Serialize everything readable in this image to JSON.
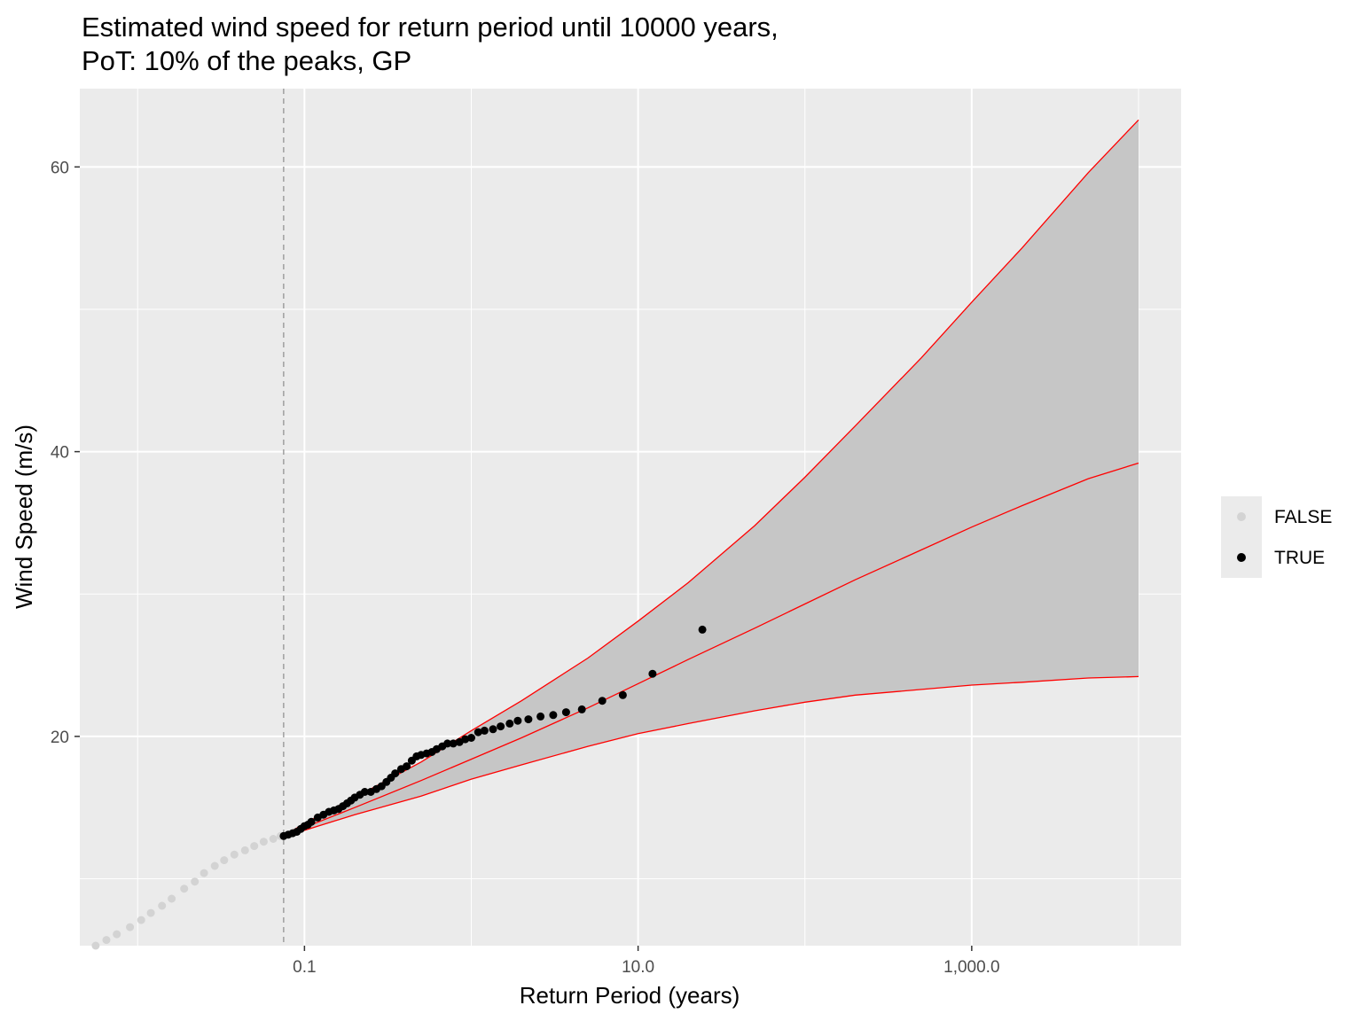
{
  "chart_data": {
    "type": "scatter",
    "title_lines": [
      "Estimated wind speed for return period until 10000 years,",
      "PoT: 10% of the peaks, GP"
    ],
    "xlabel": "Return Period (years)",
    "ylabel": "Wind Speed (m/s)",
    "x_scale": "log10",
    "xlim": [
      0.0045,
      18000
    ],
    "ylim": [
      5.3,
      65.5
    ],
    "x_ticks": [
      {
        "value": 0.1,
        "label": "0.1"
      },
      {
        "value": 10,
        "label": "10.0"
      },
      {
        "value": 1000,
        "label": "1,000.0"
      }
    ],
    "x_minor_gridlines": [
      0.01,
      1,
      100,
      10000
    ],
    "y_ticks": [
      {
        "value": 20,
        "label": "20"
      },
      {
        "value": 40,
        "label": "40"
      },
      {
        "value": 60,
        "label": "60"
      }
    ],
    "y_minor_gridlines": [
      10,
      30,
      50
    ],
    "threshold_x": 0.075,
    "grid": true,
    "legend": {
      "position": "right",
      "entries": [
        {
          "label": "FALSE",
          "color": "#d3d3d3"
        },
        {
          "label": "TRUE",
          "color": "#000000"
        }
      ]
    },
    "colors": {
      "panel": "#ebebeb",
      "grid": "#ffffff",
      "ribbon": "#c6c6c6",
      "fit_line": "#ff0000",
      "threshold_line": "#999999"
    },
    "fit_curve": {
      "x": [
        0.075,
        0.1,
        0.2,
        0.5,
        1,
        2,
        5,
        10,
        20,
        50,
        100,
        200,
        500,
        1000,
        2000,
        5000,
        10000
      ],
      "central": [
        13.0,
        13.6,
        15.0,
        16.9,
        18.4,
        19.9,
        22.0,
        23.7,
        25.4,
        27.6,
        29.3,
        31.0,
        33.1,
        34.7,
        36.2,
        38.1,
        39.2
      ],
      "upper": [
        13.0,
        13.9,
        15.7,
        18.2,
        20.4,
        22.5,
        25.5,
        28.1,
        30.8,
        34.8,
        38.2,
        41.8,
        46.6,
        50.5,
        54.3,
        59.6,
        63.3
      ],
      "lower": [
        13.0,
        13.4,
        14.5,
        15.8,
        17.0,
        18.0,
        19.3,
        20.2,
        20.9,
        21.8,
        22.4,
        22.9,
        23.3,
        23.6,
        23.8,
        24.1,
        24.2
      ]
    },
    "series": [
      {
        "name": "FALSE",
        "color": "#d3d3d3",
        "x": [
          0.0056,
          0.0065,
          0.0075,
          0.009,
          0.0105,
          0.012,
          0.014,
          0.016,
          0.019,
          0.022,
          0.025,
          0.029,
          0.033,
          0.038,
          0.044,
          0.05,
          0.057,
          0.065,
          0.072
        ],
        "y": [
          5.3,
          5.7,
          6.1,
          6.6,
          7.1,
          7.6,
          8.1,
          8.6,
          9.3,
          9.8,
          10.4,
          10.9,
          11.3,
          11.7,
          12.0,
          12.3,
          12.6,
          12.8,
          13.0
        ]
      },
      {
        "name": "TRUE",
        "color": "#000000",
        "x": [
          0.075,
          0.08,
          0.085,
          0.09,
          0.095,
          0.1,
          0.105,
          0.11,
          0.12,
          0.13,
          0.14,
          0.15,
          0.16,
          0.17,
          0.18,
          0.19,
          0.2,
          0.215,
          0.23,
          0.25,
          0.27,
          0.29,
          0.31,
          0.33,
          0.35,
          0.38,
          0.41,
          0.44,
          0.47,
          0.5,
          0.54,
          0.58,
          0.62,
          0.67,
          0.72,
          0.78,
          0.85,
          0.92,
          1.0,
          1.1,
          1.2,
          1.35,
          1.5,
          1.7,
          1.9,
          2.2,
          2.6,
          3.1,
          3.7,
          4.6,
          6.1,
          8.1,
          12.2,
          24.3
        ],
        "y": [
          13.0,
          13.1,
          13.2,
          13.3,
          13.5,
          13.7,
          13.8,
          14.0,
          14.3,
          14.5,
          14.7,
          14.8,
          14.9,
          15.1,
          15.3,
          15.5,
          15.7,
          15.9,
          16.1,
          16.1,
          16.3,
          16.5,
          16.8,
          17.1,
          17.4,
          17.7,
          17.9,
          18.3,
          18.6,
          18.7,
          18.8,
          18.9,
          19.1,
          19.3,
          19.5,
          19.5,
          19.6,
          19.8,
          19.9,
          20.3,
          20.4,
          20.5,
          20.7,
          20.9,
          21.1,
          21.2,
          21.4,
          21.5,
          21.7,
          21.9,
          22.5,
          22.9,
          24.4,
          27.5
        ]
      }
    ]
  }
}
